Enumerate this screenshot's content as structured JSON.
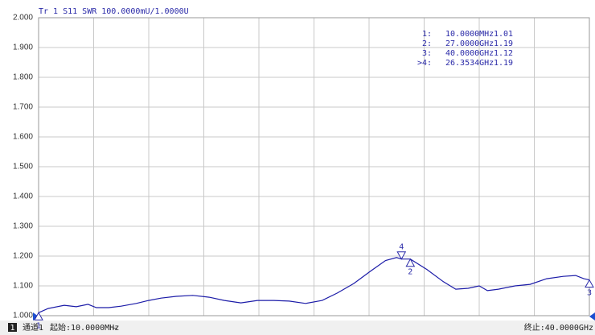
{
  "chart_data": {
    "type": "line",
    "title": "Tr 1  S11 SWR 100.0000mU/1.0000U",
    "xlim": [
      0.01,
      40
    ],
    "xticks": [
      0.01,
      4.009,
      8.008,
      12.007,
      16.006,
      20.005,
      24.004,
      28.003,
      32.002,
      36.001,
      40
    ],
    "ylim": [
      1,
      2
    ],
    "yticks": [
      {
        "value": 1,
        "label": "1.000"
      },
      {
        "value": 1.1,
        "label": "1.100"
      },
      {
        "value": 1.2,
        "label": "1.200"
      },
      {
        "value": 1.3,
        "label": "1.300"
      },
      {
        "value": 1.4,
        "label": "1.400"
      },
      {
        "value": 1.5,
        "label": "1.500"
      },
      {
        "value": 1.6,
        "label": "1.600"
      },
      {
        "value": 1.7,
        "label": "1.700"
      },
      {
        "value": 1.8,
        "label": "1.800"
      },
      {
        "value": 1.9,
        "label": "1.900"
      },
      {
        "value": 2,
        "label": "2.000"
      }
    ],
    "grid": true,
    "x": [
      0.01,
      0.7,
      1.87,
      2.75,
      3.6,
      4.2,
      5.1,
      6.0,
      7.1,
      8.0,
      8.9,
      10.0,
      11.2,
      12.4,
      13.5,
      14.7,
      15.9,
      17.1,
      18.2,
      19.4,
      20.6,
      21.7,
      22.9,
      24.1,
      25.2,
      26.0,
      26.3534,
      27.0,
      28.2,
      29.4,
      30.3,
      31.2,
      32.0,
      32.6,
      33.4,
      34.6,
      35.7,
      36.9,
      38.1,
      39.0,
      39.6,
      40.0
    ],
    "series": [
      {
        "color": "#1c1ca8",
        "values": [
          1.01,
          1.024,
          1.035,
          1.03,
          1.038,
          1.027,
          1.027,
          1.032,
          1.041,
          1.051,
          1.059,
          1.065,
          1.068,
          1.062,
          1.051,
          1.043,
          1.051,
          1.051,
          1.049,
          1.041,
          1.051,
          1.076,
          1.108,
          1.149,
          1.185,
          1.195,
          1.19,
          1.19,
          1.155,
          1.114,
          1.089,
          1.092,
          1.1,
          1.084,
          1.089,
          1.1,
          1.105,
          1.124,
          1.132,
          1.135,
          1.124,
          1.12
        ]
      }
    ],
    "active_marker": 3,
    "markers": [
      {
        "id": "1",
        "label": "1:",
        "x": 0.01,
        "x_label": "10.0000MHz",
        "value": 1.01
      },
      {
        "id": "2",
        "label": "2:",
        "x": 27,
        "x_label": "27.0000GHz",
        "value": 1.19
      },
      {
        "id": "3",
        "label": "3:",
        "x": 40,
        "x_label": "40.0000GHz",
        "value": 1.12
      },
      {
        "id": "4",
        "label": ">4:",
        "x": 26.3534,
        "x_label": "26.3534GHz",
        "value": 1.19
      }
    ],
    "status": {
      "channel_number": "1",
      "channel": "通道1",
      "start": "起始:10.0000MHz",
      "dash": "—",
      "stop": "终止:40.0000GHz"
    }
  }
}
